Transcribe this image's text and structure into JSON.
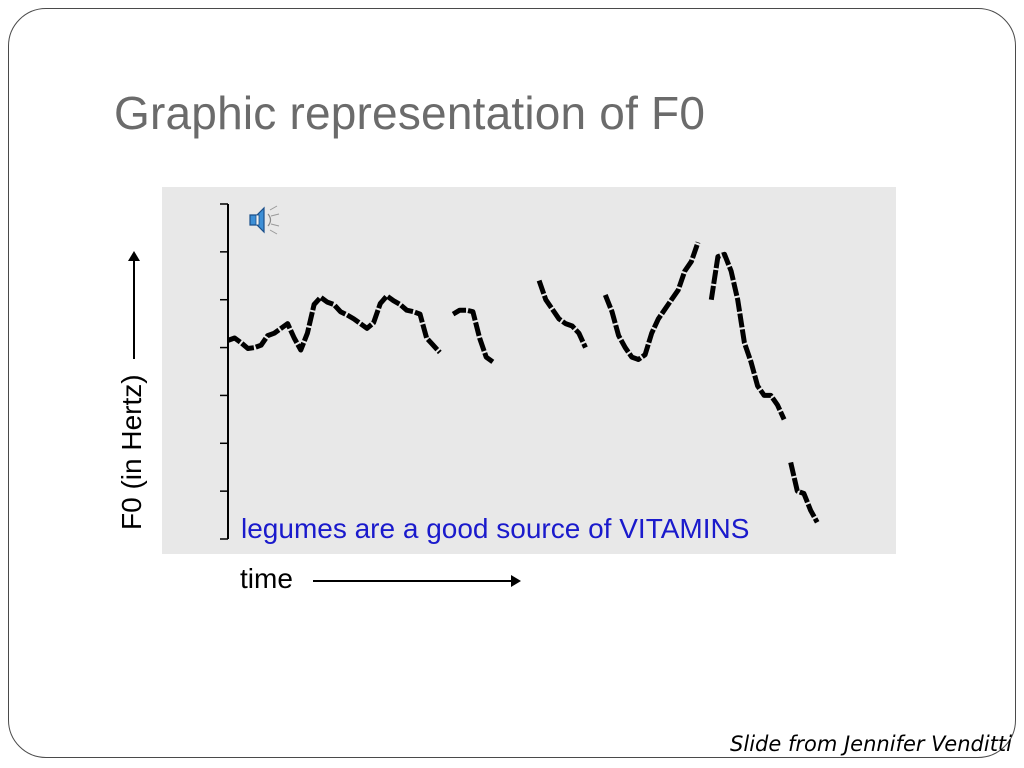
{
  "slide": {
    "title": "Graphic representation of F0",
    "credit": "Slide from Jennifer Venditti"
  },
  "icons": {
    "speaker": "speaker-icon"
  },
  "colors": {
    "caption": "#1a1acc",
    "panel": "#e8e8e8",
    "trace": "#000000",
    "title": "#6b6b6b"
  },
  "chart_data": {
    "type": "line",
    "xlabel": "time",
    "ylabel": "F0 (in Hertz)",
    "caption": "legumes are a good source of VITAMINS",
    "grid": false,
    "xlim": [
      0,
      100
    ],
    "ylim": [
      0,
      7
    ],
    "y_ticks": [
      0,
      1,
      2,
      3,
      4,
      5,
      6,
      7
    ],
    "series": [
      {
        "values": [
          [
            0,
            4.15
          ],
          [
            1,
            4.2
          ],
          [
            2,
            4.1
          ],
          [
            3,
            3.98
          ],
          [
            4,
            4.0
          ],
          [
            5,
            4.05
          ],
          [
            6,
            4.25
          ],
          [
            7,
            4.3
          ],
          [
            8,
            4.4
          ],
          [
            9,
            4.5
          ],
          [
            10,
            4.2
          ],
          [
            11,
            3.95
          ],
          [
            12,
            4.3
          ],
          [
            13,
            4.9
          ],
          [
            14,
            5.05
          ],
          [
            15,
            4.95
          ],
          [
            16,
            4.9
          ],
          [
            17,
            4.75
          ],
          [
            18,
            4.68
          ],
          [
            19,
            4.6
          ],
          [
            20,
            4.5
          ],
          [
            21,
            4.4
          ],
          [
            22,
            4.52
          ],
          [
            23,
            4.92
          ],
          [
            24,
            5.08
          ],
          [
            25,
            4.98
          ],
          [
            26,
            4.9
          ],
          [
            27,
            4.78
          ],
          [
            28,
            4.75
          ],
          [
            29,
            4.7
          ],
          [
            30,
            4.2
          ],
          [
            31,
            4.05
          ],
          [
            32,
            3.9
          ]
        ]
      },
      {
        "values": [
          [
            34,
            4.7
          ],
          [
            35,
            4.78
          ],
          [
            36,
            4.78
          ],
          [
            37,
            4.75
          ],
          [
            38,
            4.2
          ],
          [
            39,
            3.8
          ],
          [
            40,
            3.7
          ]
        ]
      },
      {
        "values": [
          [
            47,
            5.4
          ],
          [
            48,
            5.0
          ],
          [
            49,
            4.8
          ],
          [
            50,
            4.6
          ],
          [
            51,
            4.5
          ],
          [
            52,
            4.45
          ],
          [
            53,
            4.3
          ],
          [
            54,
            4.0
          ]
        ]
      },
      {
        "values": [
          [
            57,
            5.1
          ],
          [
            58,
            4.75
          ],
          [
            59,
            4.25
          ],
          [
            60,
            4.0
          ],
          [
            61,
            3.8
          ],
          [
            62,
            3.75
          ],
          [
            63,
            3.85
          ],
          [
            64,
            4.3
          ],
          [
            65,
            4.6
          ],
          [
            66,
            4.8
          ],
          [
            67,
            5.0
          ],
          [
            68,
            5.2
          ],
          [
            69,
            5.6
          ],
          [
            70,
            5.8
          ],
          [
            71,
            6.2
          ]
        ]
      },
      {
        "values": [
          [
            73,
            5.0
          ],
          [
            74,
            5.9
          ],
          [
            75,
            5.95
          ],
          [
            76,
            5.6
          ],
          [
            77,
            5.0
          ],
          [
            78,
            4.1
          ],
          [
            79,
            3.7
          ],
          [
            80,
            3.2
          ],
          [
            81,
            3.0
          ],
          [
            82,
            3.0
          ],
          [
            83,
            2.8
          ],
          [
            84,
            2.5
          ]
        ]
      },
      {
        "values": [
          [
            85,
            1.6
          ],
          [
            86,
            1.0
          ],
          [
            87,
            0.95
          ],
          [
            88,
            0.6
          ],
          [
            89,
            0.35
          ]
        ]
      }
    ]
  }
}
